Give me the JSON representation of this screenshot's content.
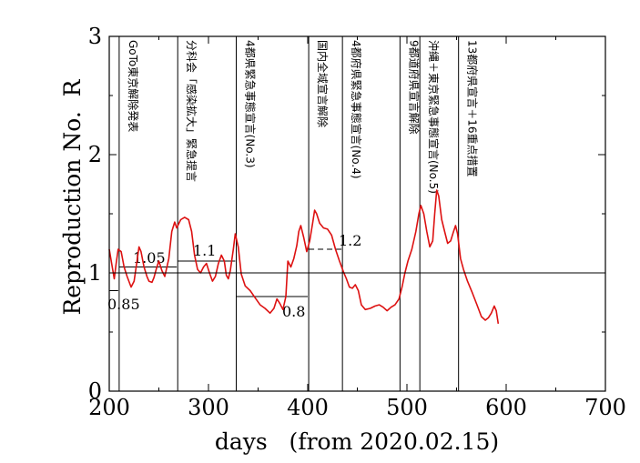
{
  "chart_data": {
    "type": "line",
    "xlabel": "days   (from 2020.02.15)",
    "ylabel": "Reproduction No.  R",
    "xlim": [
      200,
      700
    ],
    "ylim": [
      0,
      3
    ],
    "xticks": [
      200,
      300,
      400,
      500,
      600,
      700
    ],
    "yticks": [
      0,
      1,
      2,
      3
    ],
    "xtick_labels": [
      "200",
      "300",
      "400",
      "500",
      "600",
      "700"
    ],
    "ytick_labels": [
      "0",
      "1",
      "2",
      "3"
    ],
    "line_color": "#dd1111",
    "reference_line": 1,
    "series": [
      {
        "values": [
          [
            200,
            1.2
          ],
          [
            203,
            1.05
          ],
          [
            205,
            0.95
          ],
          [
            207,
            1.08
          ],
          [
            209,
            1.2
          ],
          [
            212,
            1.18
          ],
          [
            215,
            1.05
          ],
          [
            218,
            0.97
          ],
          [
            222,
            0.88
          ],
          [
            225,
            0.93
          ],
          [
            228,
            1.1
          ],
          [
            230,
            1.22
          ],
          [
            232,
            1.18
          ],
          [
            235,
            1.05
          ],
          [
            238,
            0.97
          ],
          [
            240,
            0.93
          ],
          [
            243,
            0.92
          ],
          [
            245,
            0.96
          ],
          [
            248,
            1.05
          ],
          [
            250,
            1.1
          ],
          [
            253,
            1.02
          ],
          [
            256,
            0.97
          ],
          [
            260,
            1.12
          ],
          [
            263,
            1.35
          ],
          [
            266,
            1.43
          ],
          [
            268,
            1.38
          ],
          [
            272,
            1.45
          ],
          [
            276,
            1.47
          ],
          [
            280,
            1.45
          ],
          [
            283,
            1.35
          ],
          [
            286,
            1.15
          ],
          [
            289,
            1.03
          ],
          [
            292,
            1.0
          ],
          [
            295,
            1.05
          ],
          [
            298,
            1.08
          ],
          [
            301,
            1.0
          ],
          [
            304,
            0.93
          ],
          [
            307,
            0.97
          ],
          [
            310,
            1.08
          ],
          [
            313,
            1.15
          ],
          [
            316,
            1.1
          ],
          [
            318,
            0.98
          ],
          [
            320,
            0.95
          ],
          [
            322,
            1.02
          ],
          [
            325,
            1.2
          ],
          [
            327,
            1.33
          ],
          [
            330,
            1.22
          ],
          [
            333,
            0.99
          ],
          [
            337,
            0.89
          ],
          [
            342,
            0.85
          ],
          [
            347,
            0.79
          ],
          [
            352,
            0.73
          ],
          [
            357,
            0.7
          ],
          [
            362,
            0.66
          ],
          [
            366,
            0.7
          ],
          [
            369,
            0.78
          ],
          [
            372,
            0.74
          ],
          [
            375,
            0.69
          ],
          [
            378,
            0.8
          ],
          [
            380,
            1.1
          ],
          [
            383,
            1.05
          ],
          [
            386,
            1.12
          ],
          [
            389,
            1.23
          ],
          [
            391,
            1.35
          ],
          [
            393,
            1.4
          ],
          [
            396,
            1.3
          ],
          [
            399,
            1.18
          ],
          [
            402,
            1.27
          ],
          [
            405,
            1.42
          ],
          [
            407,
            1.53
          ],
          [
            409,
            1.5
          ],
          [
            412,
            1.42
          ],
          [
            416,
            1.38
          ],
          [
            420,
            1.37
          ],
          [
            424,
            1.32
          ],
          [
            428,
            1.2
          ],
          [
            432,
            1.1
          ],
          [
            436,
            1.01
          ],
          [
            439,
            0.95
          ],
          [
            442,
            0.88
          ],
          [
            445,
            0.87
          ],
          [
            448,
            0.9
          ],
          [
            451,
            0.85
          ],
          [
            454,
            0.73
          ],
          [
            458,
            0.69
          ],
          [
            463,
            0.7
          ],
          [
            468,
            0.72
          ],
          [
            472,
            0.73
          ],
          [
            476,
            0.71
          ],
          [
            480,
            0.68
          ],
          [
            484,
            0.71
          ],
          [
            488,
            0.73
          ],
          [
            492,
            0.78
          ],
          [
            495,
            0.88
          ],
          [
            498,
            1.0
          ],
          [
            501,
            1.1
          ],
          [
            505,
            1.2
          ],
          [
            509,
            1.35
          ],
          [
            512,
            1.5
          ],
          [
            514,
            1.57
          ],
          [
            517,
            1.5
          ],
          [
            520,
            1.35
          ],
          [
            523,
            1.22
          ],
          [
            526,
            1.27
          ],
          [
            528,
            1.5
          ],
          [
            530,
            1.7
          ],
          [
            532,
            1.65
          ],
          [
            535,
            1.45
          ],
          [
            538,
            1.35
          ],
          [
            541,
            1.25
          ],
          [
            544,
            1.27
          ],
          [
            547,
            1.35
          ],
          [
            549,
            1.4
          ],
          [
            551,
            1.33
          ],
          [
            554,
            1.12
          ],
          [
            557,
            1.03
          ],
          [
            561,
            0.93
          ],
          [
            566,
            0.83
          ],
          [
            571,
            0.72
          ],
          [
            575,
            0.63
          ],
          [
            579,
            0.6
          ],
          [
            582,
            0.62
          ],
          [
            585,
            0.66
          ],
          [
            588,
            0.72
          ],
          [
            590,
            0.68
          ],
          [
            592,
            0.57
          ]
        ]
      }
    ],
    "events": [
      {
        "x": 210,
        "label": "GoTo東京解除発表"
      },
      {
        "x": 269,
        "label": "分科会「感染拡大」緊急提言"
      },
      {
        "x": 328,
        "label": "4都県緊急事態宣言(No.3)"
      },
      {
        "x": 401,
        "label": "国内全域宣言解除"
      },
      {
        "x": 435,
        "label": "4都府県緊急事態宣言(No.4)"
      },
      {
        "x": 493,
        "label": "9都道府県宣言解除"
      },
      {
        "x": 513,
        "label": "沖縄＋東京緊急事態宣言(No.5)"
      },
      {
        "x": 552,
        "label": "13都府県宣言＋16重点措置"
      }
    ],
    "period_means": [
      {
        "x0": 200,
        "x1": 209,
        "y": 0.85,
        "label": "0.85",
        "dashed": false
      },
      {
        "x0": 210,
        "x1": 268,
        "y": 1.05,
        "label": "1.05",
        "dashed": false
      },
      {
        "x0": 269,
        "x1": 327,
        "y": 1.1,
        "label": "1.1",
        "dashed": false
      },
      {
        "x0": 328,
        "x1": 400,
        "y": 0.8,
        "label": "0.8",
        "dashed": false
      },
      {
        "x0": 401,
        "x1": 435,
        "y": 1.2,
        "label": "1.2",
        "dashed": true
      }
    ]
  }
}
